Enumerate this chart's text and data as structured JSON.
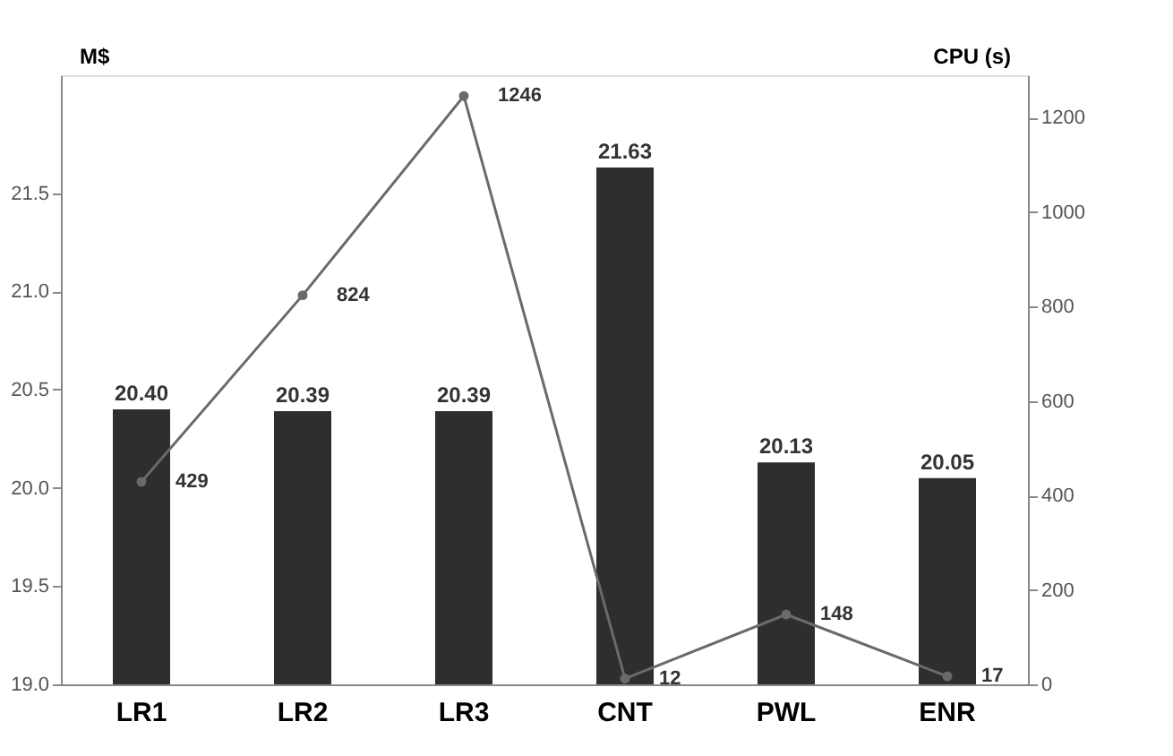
{
  "chart_data": {
    "type": "bar",
    "ylabel": "M$",
    "y2label": "CPU (s)",
    "categories": [
      "LR1",
      "LR2",
      "LR3",
      "CNT",
      "PWL",
      "ENR"
    ],
    "series": [
      {
        "color": "#2e2e2e",
        "values": [
          20.4,
          20.39,
          20.39,
          21.63,
          20.13,
          20.05
        ],
        "value_labels": [
          "20.40",
          "20.39",
          "20.39",
          "21.63",
          "20.13",
          "20.05"
        ]
      },
      {
        "type": "line",
        "axis": "y2",
        "color": "#6a6a6a",
        "marker": "circle",
        "values": [
          429,
          824,
          1246,
          12,
          148,
          17
        ],
        "value_labels": [
          "429",
          "824",
          "1246",
          "12",
          "148",
          "17"
        ]
      }
    ],
    "ylim": [
      19.0,
      22.1
    ],
    "yticks": [
      {
        "value": 19,
        "label": "19.0"
      },
      19.5,
      {
        "value": 20,
        "label": "20.0"
      },
      20.5,
      {
        "value": 21,
        "label": "21.0"
      },
      21.5
    ],
    "y2lim": [
      0,
      1290
    ],
    "y2ticks": [
      0,
      200,
      400,
      600,
      800,
      1000,
      1200
    ],
    "grid": false
  }
}
